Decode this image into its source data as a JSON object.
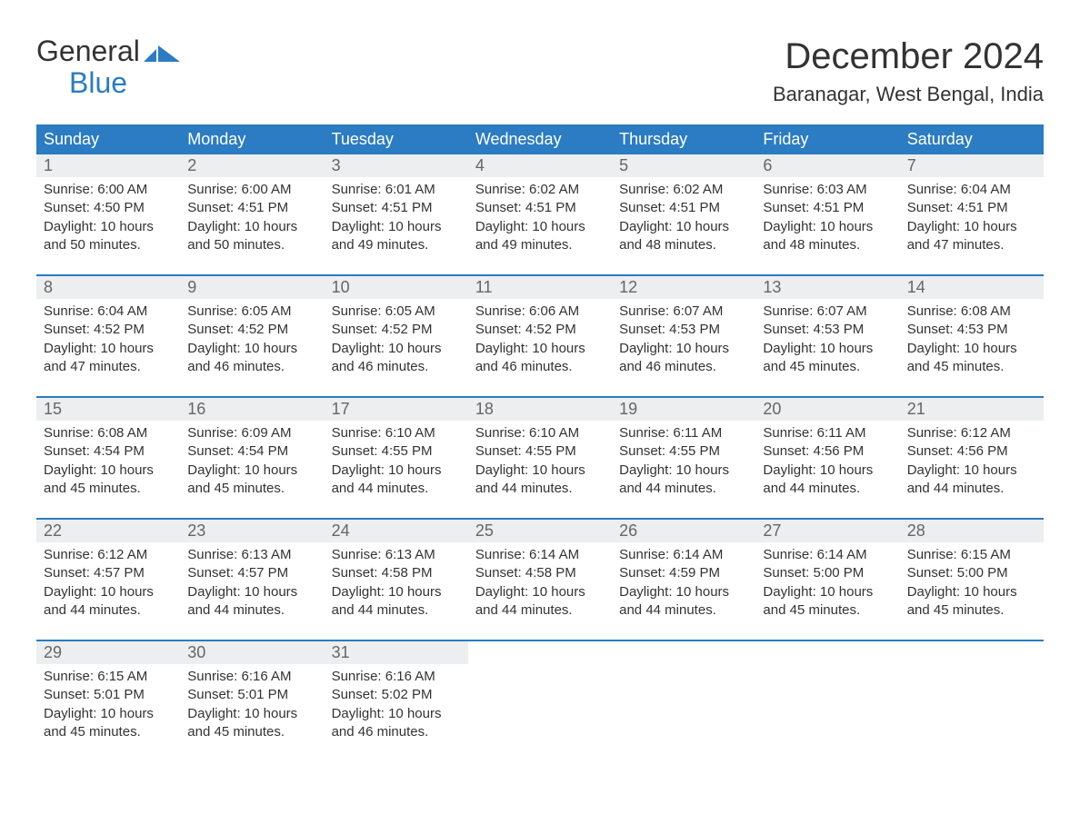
{
  "logo": {
    "line1": "General",
    "line2": "Blue"
  },
  "title": "December 2024",
  "location": "Baranagar, West Bengal, India",
  "colors": {
    "accent": "#2b7cc2",
    "daynum_bg": "#eceeef",
    "text": "#333333",
    "muted": "#666666",
    "bg": "#ffffff"
  },
  "weekdays": [
    "Sunday",
    "Monday",
    "Tuesday",
    "Wednesday",
    "Thursday",
    "Friday",
    "Saturday"
  ],
  "weeks": [
    [
      {
        "n": "1",
        "sr": "6:00 AM",
        "ss": "4:50 PM",
        "dl": "10 hours and 50 minutes."
      },
      {
        "n": "2",
        "sr": "6:00 AM",
        "ss": "4:51 PM",
        "dl": "10 hours and 50 minutes."
      },
      {
        "n": "3",
        "sr": "6:01 AM",
        "ss": "4:51 PM",
        "dl": "10 hours and 49 minutes."
      },
      {
        "n": "4",
        "sr": "6:02 AM",
        "ss": "4:51 PM",
        "dl": "10 hours and 49 minutes."
      },
      {
        "n": "5",
        "sr": "6:02 AM",
        "ss": "4:51 PM",
        "dl": "10 hours and 48 minutes."
      },
      {
        "n": "6",
        "sr": "6:03 AM",
        "ss": "4:51 PM",
        "dl": "10 hours and 48 minutes."
      },
      {
        "n": "7",
        "sr": "6:04 AM",
        "ss": "4:51 PM",
        "dl": "10 hours and 47 minutes."
      }
    ],
    [
      {
        "n": "8",
        "sr": "6:04 AM",
        "ss": "4:52 PM",
        "dl": "10 hours and 47 minutes."
      },
      {
        "n": "9",
        "sr": "6:05 AM",
        "ss": "4:52 PM",
        "dl": "10 hours and 46 minutes."
      },
      {
        "n": "10",
        "sr": "6:05 AM",
        "ss": "4:52 PM",
        "dl": "10 hours and 46 minutes."
      },
      {
        "n": "11",
        "sr": "6:06 AM",
        "ss": "4:52 PM",
        "dl": "10 hours and 46 minutes."
      },
      {
        "n": "12",
        "sr": "6:07 AM",
        "ss": "4:53 PM",
        "dl": "10 hours and 46 minutes."
      },
      {
        "n": "13",
        "sr": "6:07 AM",
        "ss": "4:53 PM",
        "dl": "10 hours and 45 minutes."
      },
      {
        "n": "14",
        "sr": "6:08 AM",
        "ss": "4:53 PM",
        "dl": "10 hours and 45 minutes."
      }
    ],
    [
      {
        "n": "15",
        "sr": "6:08 AM",
        "ss": "4:54 PM",
        "dl": "10 hours and 45 minutes."
      },
      {
        "n": "16",
        "sr": "6:09 AM",
        "ss": "4:54 PM",
        "dl": "10 hours and 45 minutes."
      },
      {
        "n": "17",
        "sr": "6:10 AM",
        "ss": "4:55 PM",
        "dl": "10 hours and 44 minutes."
      },
      {
        "n": "18",
        "sr": "6:10 AM",
        "ss": "4:55 PM",
        "dl": "10 hours and 44 minutes."
      },
      {
        "n": "19",
        "sr": "6:11 AM",
        "ss": "4:55 PM",
        "dl": "10 hours and 44 minutes."
      },
      {
        "n": "20",
        "sr": "6:11 AM",
        "ss": "4:56 PM",
        "dl": "10 hours and 44 minutes."
      },
      {
        "n": "21",
        "sr": "6:12 AM",
        "ss": "4:56 PM",
        "dl": "10 hours and 44 minutes."
      }
    ],
    [
      {
        "n": "22",
        "sr": "6:12 AM",
        "ss": "4:57 PM",
        "dl": "10 hours and 44 minutes."
      },
      {
        "n": "23",
        "sr": "6:13 AM",
        "ss": "4:57 PM",
        "dl": "10 hours and 44 minutes."
      },
      {
        "n": "24",
        "sr": "6:13 AM",
        "ss": "4:58 PM",
        "dl": "10 hours and 44 minutes."
      },
      {
        "n": "25",
        "sr": "6:14 AM",
        "ss": "4:58 PM",
        "dl": "10 hours and 44 minutes."
      },
      {
        "n": "26",
        "sr": "6:14 AM",
        "ss": "4:59 PM",
        "dl": "10 hours and 44 minutes."
      },
      {
        "n": "27",
        "sr": "6:14 AM",
        "ss": "5:00 PM",
        "dl": "10 hours and 45 minutes."
      },
      {
        "n": "28",
        "sr": "6:15 AM",
        "ss": "5:00 PM",
        "dl": "10 hours and 45 minutes."
      }
    ],
    [
      {
        "n": "29",
        "sr": "6:15 AM",
        "ss": "5:01 PM",
        "dl": "10 hours and 45 minutes."
      },
      {
        "n": "30",
        "sr": "6:16 AM",
        "ss": "5:01 PM",
        "dl": "10 hours and 45 minutes."
      },
      {
        "n": "31",
        "sr": "6:16 AM",
        "ss": "5:02 PM",
        "dl": "10 hours and 46 minutes."
      },
      null,
      null,
      null,
      null
    ]
  ],
  "labels": {
    "sunrise": "Sunrise: ",
    "sunset": "Sunset: ",
    "daylight": "Daylight: "
  }
}
